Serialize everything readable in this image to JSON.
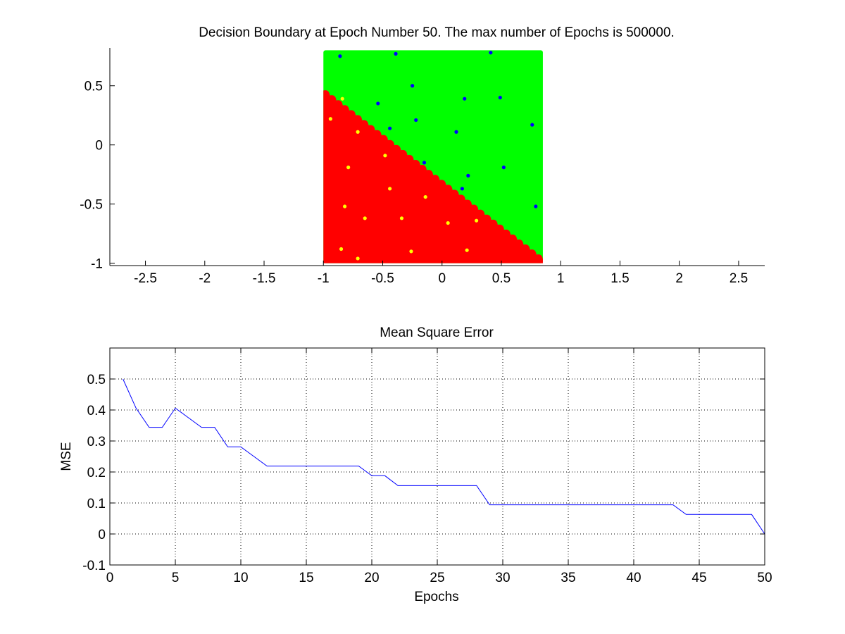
{
  "chart_data": [
    {
      "type": "scatter",
      "title": "Decision Boundary at Epoch Number 50. The max number of Epochs is 500000.",
      "xlabel": "",
      "ylabel": "",
      "xlim": [
        -2.8,
        2.72
      ],
      "ylim": [
        -1.02,
        0.82
      ],
      "xticks": [
        -2.5,
        -2,
        -1.5,
        -1,
        -0.5,
        0,
        0.5,
        1,
        1.5,
        2,
        2.5
      ],
      "xtick_labels": [
        "-2.5",
        "-2",
        "-1.5",
        "-1",
        "-0.5",
        "0",
        "0.5",
        "1",
        "1.5",
        "2",
        "2.5"
      ],
      "yticks": [
        0.5,
        0,
        -0.5,
        -1
      ],
      "ytick_labels": [
        "0.5",
        "0",
        "-0.5",
        "-1"
      ],
      "grid": false,
      "region": {
        "x_range": [
          -1,
          0.85
        ],
        "y_range": [
          -1,
          0.8
        ],
        "upper_color": "#00ff00",
        "lower_color": "#ff0000",
        "boundary": [
          [
            -1,
            0.46
          ],
          [
            0.85,
            -0.97
          ]
        ]
      },
      "series": [
        {
          "color": "#0000ff",
          "points": [
            [
              -0.86,
              0.75
            ],
            [
              -0.39,
              0.77
            ],
            [
              0.41,
              0.78
            ],
            [
              -0.25,
              0.5
            ],
            [
              -0.54,
              0.35
            ],
            [
              0.19,
              0.39
            ],
            [
              0.49,
              0.4
            ],
            [
              -0.22,
              0.21
            ],
            [
              -0.44,
              0.14
            ],
            [
              0.12,
              0.11
            ],
            [
              0.76,
              0.17
            ],
            [
              -0.15,
              -0.15
            ],
            [
              0.22,
              -0.26
            ],
            [
              0.52,
              -0.19
            ],
            [
              0.17,
              -0.37
            ],
            [
              0.79,
              -0.52
            ]
          ]
        },
        {
          "color": "#ffff00",
          "points": [
            [
              -0.84,
              0.39
            ],
            [
              -0.94,
              0.22
            ],
            [
              -0.71,
              0.11
            ],
            [
              -0.48,
              -0.09
            ],
            [
              -0.79,
              -0.19
            ],
            [
              -0.44,
              -0.37
            ],
            [
              -0.14,
              -0.44
            ],
            [
              -0.82,
              -0.52
            ],
            [
              -0.65,
              -0.62
            ],
            [
              -0.34,
              -0.62
            ],
            [
              0.05,
              -0.66
            ],
            [
              0.29,
              -0.64
            ],
            [
              -0.85,
              -0.88
            ],
            [
              -0.71,
              -0.96
            ],
            [
              -0.26,
              -0.9
            ],
            [
              0.21,
              -0.89
            ]
          ]
        }
      ]
    },
    {
      "type": "line",
      "title": "Mean Square Error",
      "xlabel": "Epochs",
      "ylabel": "MSE",
      "xlim": [
        0,
        50
      ],
      "ylim": [
        -0.1,
        0.6
      ],
      "xticks": [
        0,
        5,
        10,
        15,
        20,
        25,
        30,
        35,
        40,
        45,
        50
      ],
      "xtick_labels": [
        "0",
        "5",
        "10",
        "15",
        "20",
        "25",
        "30",
        "35",
        "40",
        "45",
        "50"
      ],
      "yticks": [
        -0.1,
        0,
        0.1,
        0.2,
        0.3,
        0.4,
        0.5
      ],
      "ytick_labels": [
        "-0.1",
        "0",
        "0.1",
        "0.2",
        "0.3",
        "0.4",
        "0.5"
      ],
      "grid": true,
      "line_color": "#0000ff",
      "x": [
        1,
        2,
        3,
        4,
        5,
        6,
        7,
        8,
        9,
        10,
        11,
        12,
        13,
        14,
        15,
        16,
        17,
        18,
        19,
        20,
        21,
        22,
        23,
        24,
        25,
        26,
        27,
        28,
        29,
        30,
        31,
        32,
        33,
        34,
        35,
        36,
        37,
        38,
        39,
        40,
        41,
        42,
        43,
        44,
        45,
        46,
        47,
        48,
        49,
        50
      ],
      "y": [
        0.5,
        0.406,
        0.344,
        0.344,
        0.406,
        0.375,
        0.344,
        0.344,
        0.281,
        0.281,
        0.25,
        0.219,
        0.219,
        0.219,
        0.219,
        0.219,
        0.219,
        0.219,
        0.219,
        0.188,
        0.188,
        0.156,
        0.156,
        0.156,
        0.156,
        0.156,
        0.156,
        0.156,
        0.094,
        0.094,
        0.094,
        0.094,
        0.094,
        0.094,
        0.094,
        0.094,
        0.094,
        0.094,
        0.094,
        0.094,
        0.094,
        0.094,
        0.094,
        0.063,
        0.063,
        0.063,
        0.063,
        0.063,
        0.063,
        0.0
      ]
    }
  ]
}
